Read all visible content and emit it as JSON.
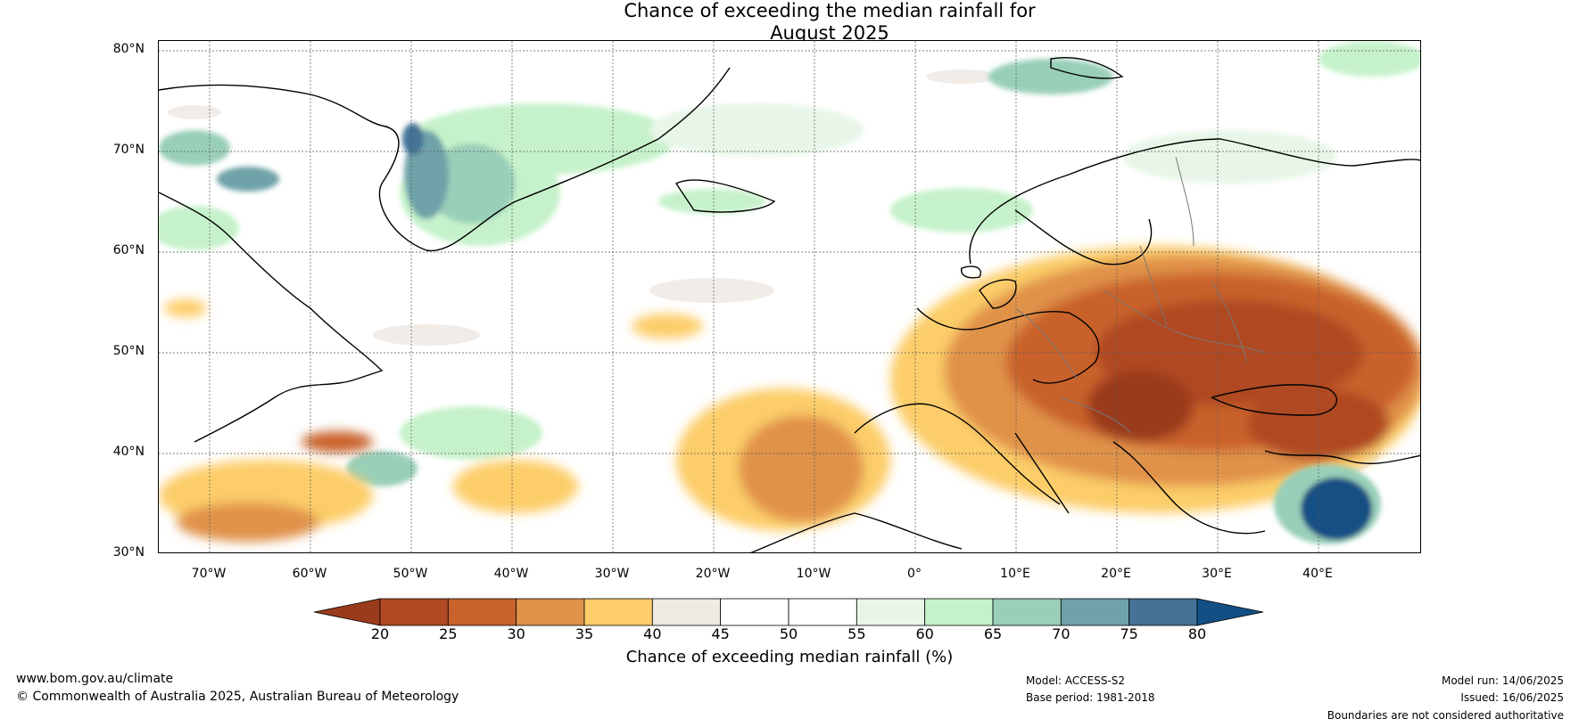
{
  "title": {
    "line1": "Chance of exceeding the median rainfall for",
    "line2": "August 2025"
  },
  "map": {
    "lat_labels": [
      "80°N",
      "70°N",
      "60°N",
      "50°N",
      "40°N",
      "30°N"
    ],
    "lon_labels": [
      "70°W",
      "60°W",
      "50°W",
      "40°W",
      "30°W",
      "20°W",
      "10°W",
      "0°",
      "10°E",
      "20°E",
      "30°E",
      "40°E"
    ],
    "extent": {
      "lon": [
        -75,
        50
      ],
      "lat": [
        30,
        81
      ]
    }
  },
  "colorbar": {
    "ticks": [
      "20",
      "25",
      "30",
      "35",
      "40",
      "45",
      "50",
      "55",
      "60",
      "65",
      "70",
      "75",
      "80"
    ],
    "colors": [
      "#9a3b1c",
      "#b04a22",
      "#c9622c",
      "#e0924a",
      "#fccd69",
      "#efeae4",
      "#ffffff",
      "#ffffff",
      "#e8f6e8",
      "#c6f2cb",
      "#99cfb8",
      "#6fa3a9",
      "#447397",
      "#134f84"
    ],
    "label": "Chance of exceeding median rainfall (%)"
  },
  "footer": {
    "website": "www.bom.gov.au/climate",
    "copyright": "© Commonwealth of Australia 2025, Australian Bureau of Meteorology",
    "model": "Model: ACCESS-S2",
    "base_period": "Base period: 1981-2018",
    "model_run": "Model run: 14/06/2025",
    "issued": "Issued: 16/06/2025",
    "disclaimer": "Boundaries are not considered authoritative"
  }
}
